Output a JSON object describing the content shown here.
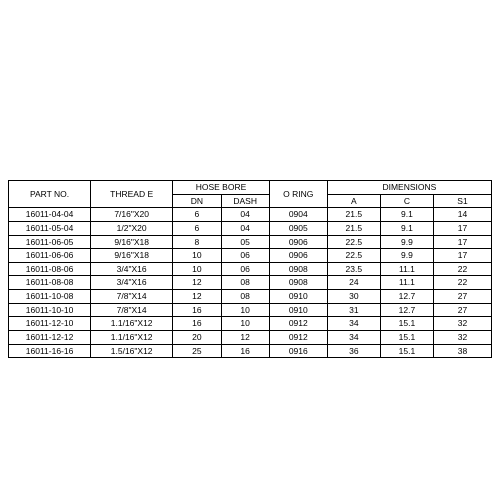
{
  "table": {
    "type": "table",
    "background_color": "#ffffff",
    "border_color": "#000000",
    "font_family": "Arial",
    "font_size_pt": 6.5,
    "text_color": "#000000",
    "header": {
      "partno": "PART NO.",
      "thread": "THREAD E",
      "hosebore": "HOSE BORE",
      "dn": "DN",
      "dash": "DASH",
      "oring": "O RING",
      "dimensions": "DIMENSIONS",
      "a": "A",
      "c": "C",
      "s1": "S1"
    },
    "column_widths_pct": [
      17,
      17,
      10,
      10,
      12,
      11,
      11,
      12
    ],
    "rows": [
      {
        "partno": "16011-04-04",
        "thread": "7/16\"X20",
        "dn": "6",
        "dash": "04",
        "oring": "0904",
        "a": "21.5",
        "c": "9.1",
        "s1": "14"
      },
      {
        "partno": "16011-05-04",
        "thread": "1/2\"X20",
        "dn": "6",
        "dash": "04",
        "oring": "0905",
        "a": "21.5",
        "c": "9.1",
        "s1": "17"
      },
      {
        "partno": "16011-06-05",
        "thread": "9/16\"X18",
        "dn": "8",
        "dash": "05",
        "oring": "0906",
        "a": "22.5",
        "c": "9.9",
        "s1": "17"
      },
      {
        "partno": "16011-06-06",
        "thread": "9/16\"X18",
        "dn": "10",
        "dash": "06",
        "oring": "0906",
        "a": "22.5",
        "c": "9.9",
        "s1": "17"
      },
      {
        "partno": "16011-08-06",
        "thread": "3/4\"X16",
        "dn": "10",
        "dash": "06",
        "oring": "0908",
        "a": "23.5",
        "c": "11.1",
        "s1": "22"
      },
      {
        "partno": "16011-08-08",
        "thread": "3/4\"X16",
        "dn": "12",
        "dash": "08",
        "oring": "0908",
        "a": "24",
        "c": "11.1",
        "s1": "22"
      },
      {
        "partno": "16011-10-08",
        "thread": "7/8\"X14",
        "dn": "12",
        "dash": "08",
        "oring": "0910",
        "a": "30",
        "c": "12.7",
        "s1": "27"
      },
      {
        "partno": "16011-10-10",
        "thread": "7/8\"X14",
        "dn": "16",
        "dash": "10",
        "oring": "0910",
        "a": "31",
        "c": "12.7",
        "s1": "27"
      },
      {
        "partno": "16011-12-10",
        "thread": "1.1/16\"X12",
        "dn": "16",
        "dash": "10",
        "oring": "0912",
        "a": "34",
        "c": "15.1",
        "s1": "32"
      },
      {
        "partno": "16011-12-12",
        "thread": "1.1/16\"X12",
        "dn": "20",
        "dash": "12",
        "oring": "0912",
        "a": "34",
        "c": "15.1",
        "s1": "32"
      },
      {
        "partno": "16011-16-16",
        "thread": "1.5/16\"X12",
        "dn": "25",
        "dash": "16",
        "oring": "0916",
        "a": "36",
        "c": "15.1",
        "s1": "38"
      }
    ]
  }
}
